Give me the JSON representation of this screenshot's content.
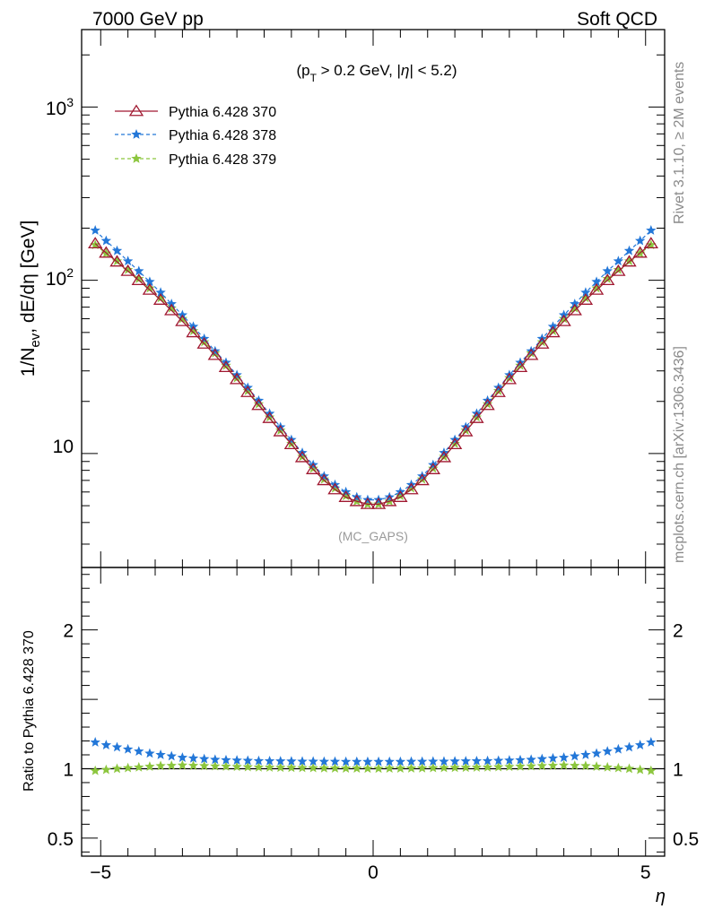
{
  "header": {
    "energy_label": "7000 GeV pp",
    "process_label": "Soft QCD"
  },
  "side_labels": {
    "rivet": "Rivet 3.1.10, ≥ 2M events",
    "mcplots": "mcplots.cern.ch [arXiv:1306.3436]"
  },
  "chart_data": [
    {
      "type": "line",
      "panel": "main",
      "ylabel": "1/N_ev, dE/dη [GeV]",
      "annotation": "(p_T > 0.2 GeV, |η| < 5.2)",
      "watermark": "(MC_GAPS)",
      "xlim": [
        -5.35,
        5.35
      ],
      "ylim": [
        2.2,
        2800
      ],
      "yscale": "log",
      "yticklabels": [
        "10",
        "10^2",
        "10^3"
      ],
      "legend_position": "top-left",
      "x": [
        -5.1,
        -4.9,
        -4.7,
        -4.5,
        -4.3,
        -4.1,
        -3.9,
        -3.7,
        -3.5,
        -3.3,
        -3.1,
        -2.9,
        -2.7,
        -2.5,
        -2.3,
        -2.1,
        -1.9,
        -1.7,
        -1.5,
        -1.3,
        -1.1,
        -0.9,
        -0.7,
        -0.5,
        -0.3,
        -0.1,
        0.1,
        0.3,
        0.5,
        0.7,
        0.9,
        1.1,
        1.3,
        1.5,
        1.7,
        1.9,
        2.1,
        2.3,
        2.5,
        2.7,
        2.9,
        3.1,
        3.3,
        3.5,
        3.7,
        3.9,
        4.1,
        4.3,
        4.5,
        4.7,
        4.9,
        5.1
      ],
      "series": [
        {
          "name": "Pythia 6.428 370",
          "color": "#a01830",
          "marker": "triangle-open",
          "line": "solid",
          "values": [
            163,
            144,
            128,
            113,
            100,
            88,
            77,
            67,
            58,
            50,
            43,
            37,
            31.5,
            26.8,
            22.6,
            19.0,
            16.0,
            13.4,
            11.3,
            9.5,
            8.1,
            7.0,
            6.2,
            5.6,
            5.3,
            5.1,
            5.1,
            5.3,
            5.6,
            6.2,
            7.0,
            8.1,
            9.5,
            11.3,
            13.4,
            16.0,
            19.0,
            22.6,
            26.8,
            31.5,
            37,
            43,
            50,
            58,
            67,
            77,
            88,
            100,
            113,
            128,
            144,
            163
          ]
        },
        {
          "name": "Pythia 6.428 378",
          "color": "#2377d8",
          "marker": "star",
          "line": "dashed",
          "values": [
            194,
            169,
            148,
            129,
            113,
            98,
            85,
            73,
            63,
            54,
            46,
            39,
            33.5,
            28.4,
            24.0,
            20.2,
            17.0,
            14.2,
            12.0,
            10.1,
            8.6,
            7.4,
            6.6,
            6.0,
            5.6,
            5.4,
            5.4,
            5.6,
            6.0,
            6.6,
            7.4,
            8.6,
            10.1,
            12.0,
            14.2,
            17.0,
            20.2,
            24.0,
            28.4,
            33.5,
            39,
            46,
            54,
            63,
            73,
            85,
            98,
            113,
            129,
            148,
            169,
            194
          ]
        },
        {
          "name": "Pythia 6.428 379",
          "color": "#8cc63e",
          "marker": "star",
          "line": "dashed",
          "values": [
            160,
            143,
            129,
            115,
            102,
            90,
            79,
            69,
            60,
            51,
            44,
            38,
            32.2,
            27.3,
            23.0,
            19.3,
            16.2,
            13.6,
            11.4,
            9.6,
            8.2,
            7.1,
            6.3,
            5.7,
            5.3,
            5.1,
            5.1,
            5.3,
            5.7,
            6.3,
            7.1,
            8.2,
            9.6,
            11.4,
            13.6,
            16.2,
            19.3,
            23.0,
            27.3,
            32.2,
            38,
            44,
            51,
            60,
            69,
            79,
            90,
            102,
            115,
            129,
            143,
            160
          ]
        }
      ]
    },
    {
      "type": "line",
      "panel": "ratio",
      "xlabel": "η",
      "ylabel": "Ratio to Pythia 6.428 370",
      "xlim": [
        -5.35,
        5.35
      ],
      "ylim": [
        0.37,
        2.45
      ],
      "yticks": [
        0.5,
        1,
        2
      ],
      "yticklabels": [
        "0.5",
        "1",
        "2"
      ],
      "xticks": [
        -5,
        0,
        5
      ],
      "xticklabels": [
        "−5",
        "0",
        "5"
      ],
      "x": [
        -5.1,
        -4.9,
        -4.7,
        -4.5,
        -4.3,
        -4.1,
        -3.9,
        -3.7,
        -3.5,
        -3.3,
        -3.1,
        -2.9,
        -2.7,
        -2.5,
        -2.3,
        -2.1,
        -1.9,
        -1.7,
        -1.5,
        -1.3,
        -1.1,
        -0.9,
        -0.7,
        -0.5,
        -0.3,
        -0.1,
        0.1,
        0.3,
        0.5,
        0.7,
        0.9,
        1.1,
        1.3,
        1.5,
        1.7,
        1.9,
        2.1,
        2.3,
        2.5,
        2.7,
        2.9,
        3.1,
        3.3,
        3.5,
        3.7,
        3.9,
        4.1,
        4.3,
        4.5,
        4.7,
        4.9,
        5.1
      ],
      "series": [
        {
          "name": "Pythia 6.428 370",
          "color": "#a01830",
          "line": "solid",
          "values": [
            1,
            1,
            1,
            1,
            1,
            1,
            1,
            1,
            1,
            1,
            1,
            1,
            1,
            1,
            1,
            1,
            1,
            1,
            1,
            1,
            1,
            1,
            1,
            1,
            1,
            1,
            1,
            1,
            1,
            1,
            1,
            1,
            1,
            1,
            1,
            1,
            1,
            1,
            1,
            1,
            1,
            1,
            1,
            1,
            1,
            1,
            1,
            1,
            1,
            1,
            1,
            1
          ]
        },
        {
          "name": "Pythia 6.428 378",
          "color": "#2377d8",
          "marker": "star",
          "values": [
            1.19,
            1.17,
            1.155,
            1.14,
            1.125,
            1.11,
            1.1,
            1.09,
            1.08,
            1.075,
            1.07,
            1.065,
            1.062,
            1.06,
            1.058,
            1.056,
            1.055,
            1.054,
            1.053,
            1.052,
            1.052,
            1.051,
            1.051,
            1.05,
            1.05,
            1.05,
            1.05,
            1.05,
            1.05,
            1.051,
            1.051,
            1.052,
            1.052,
            1.053,
            1.054,
            1.055,
            1.056,
            1.058,
            1.06,
            1.062,
            1.065,
            1.07,
            1.075,
            1.08,
            1.09,
            1.1,
            1.11,
            1.125,
            1.14,
            1.155,
            1.17,
            1.19
          ]
        },
        {
          "name": "Pythia 6.428 379",
          "color": "#8cc63e",
          "marker": "star",
          "values": [
            0.985,
            0.992,
            1.0,
            1.005,
            1.01,
            1.015,
            1.02,
            1.022,
            1.024,
            1.022,
            1.02,
            1.018,
            1.016,
            1.014,
            1.012,
            1.01,
            1.009,
            1.008,
            1.007,
            1.006,
            1.005,
            1.004,
            1.003,
            1.002,
            1.002,
            1.001,
            1.001,
            1.002,
            1.002,
            1.003,
            1.004,
            1.005,
            1.006,
            1.007,
            1.008,
            1.009,
            1.01,
            1.012,
            1.014,
            1.016,
            1.018,
            1.02,
            1.022,
            1.024,
            1.022,
            1.02,
            1.015,
            1.01,
            1.005,
            1.0,
            0.992,
            0.985
          ]
        }
      ]
    }
  ]
}
